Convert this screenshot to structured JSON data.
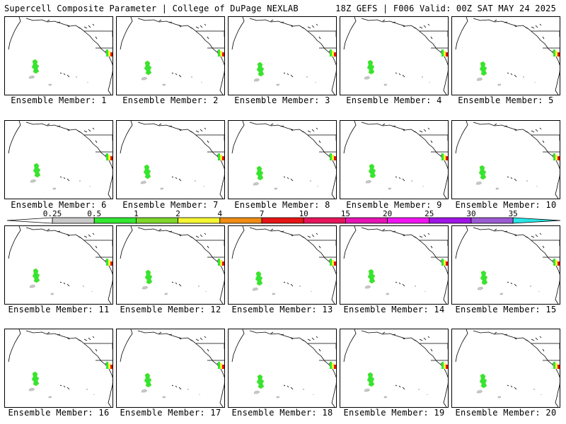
{
  "header": {
    "title_left": "Supercell Composite Parameter | College of DuPage NEXLAB",
    "title_right": "18Z GEFS | F006 Valid: 00Z SAT MAY 24 2025"
  },
  "colorbar": {
    "labels": [
      "0.25",
      "0.5",
      "1",
      "2",
      "4",
      "7",
      "10",
      "15",
      "20",
      "25",
      "30",
      "35"
    ],
    "colors": [
      "#c8c8c8",
      "#32e632",
      "#7dd62a",
      "#f5f532",
      "#f08c14",
      "#e61414",
      "#e6145a",
      "#e614b4",
      "#f014f0",
      "#a014e6",
      "#9b5ad2",
      "#28e6e6"
    ],
    "low_arrow_color": "#ffffff",
    "high_arrow_color": "#28e6e6"
  },
  "panels": [
    {
      "label": "Ensemble Member: 1"
    },
    {
      "label": "Ensemble Member: 2"
    },
    {
      "label": "Ensemble Member: 3"
    },
    {
      "label": "Ensemble Member: 4"
    },
    {
      "label": "Ensemble Member: 5"
    },
    {
      "label": "Ensemble Member: 6"
    },
    {
      "label": "Ensemble Member: 7"
    },
    {
      "label": "Ensemble Member: 8"
    },
    {
      "label": "Ensemble Member: 9"
    },
    {
      "label": "Ensemble Member: 10"
    },
    {
      "label": "Ensemble Member: 11"
    },
    {
      "label": "Ensemble Member: 12"
    },
    {
      "label": "Ensemble Member: 13"
    },
    {
      "label": "Ensemble Member: 14"
    },
    {
      "label": "Ensemble Member: 15"
    },
    {
      "label": "Ensemble Member: 16"
    },
    {
      "label": "Ensemble Member: 17"
    },
    {
      "label": "Ensemble Member: 18"
    },
    {
      "label": "Ensemble Member: 19"
    },
    {
      "label": "Ensemble Member: 20"
    }
  ]
}
